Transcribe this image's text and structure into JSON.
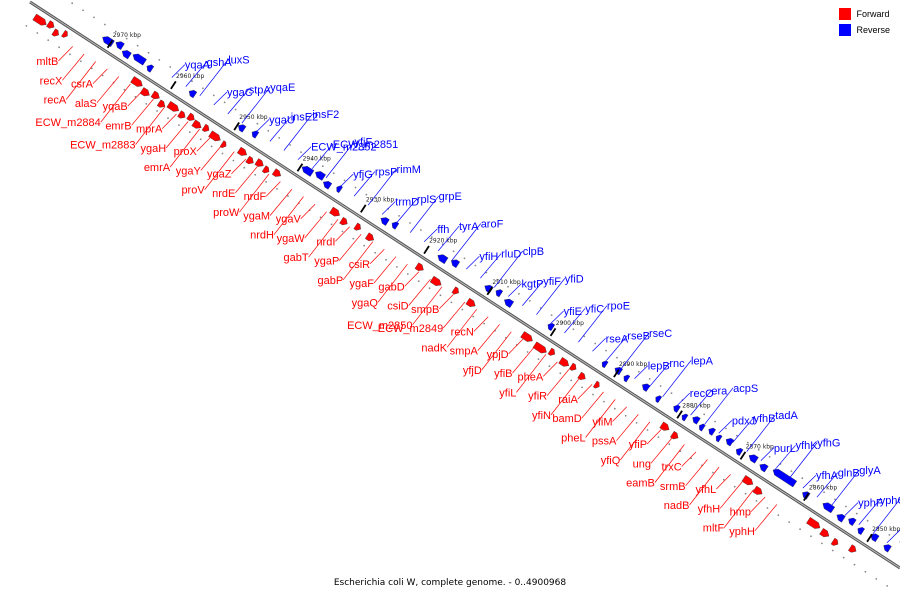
{
  "caption": "Escherichia coli W, complete genome. - 0..4900968",
  "legend": [
    {
      "label": "Forward",
      "color": "#ff0000"
    },
    {
      "label": "Reverse",
      "color": "#0000ff"
    }
  ],
  "colors": {
    "forward": "#ff0000",
    "reverse": "#0000ff",
    "backbone": "#888888"
  },
  "ticks": [
    "2970 kbp",
    "2960 kbp",
    "2950 kbp",
    "2940 kbp",
    "2930 kbp",
    "2920 kbp",
    "2910 kbp",
    "2900 kbp",
    "2890 kbp",
    "2880 kbp",
    "2870 kbp",
    "2860 kbp",
    "2850 kbp"
  ],
  "reverse_genes": [
    "yqaA",
    "gshA",
    "luxS",
    "ygaC",
    "stpA",
    "yqaE",
    "ygaU",
    "insE2",
    "insF2",
    "ECW_m2852",
    "ECW_m2851",
    "yfjF",
    "yfjG",
    "rpsP",
    "rimM",
    "trmD",
    "rplS",
    "grpE",
    "ffh",
    "tyrA",
    "aroF",
    "yfiH",
    "rluD",
    "clpB",
    "kgtP",
    "yfiF",
    "yfiD",
    "yfiE",
    "yfiC",
    "rpoE",
    "rseA",
    "rseB",
    "rseC",
    "lepB",
    "rnc",
    "lepA",
    "recO",
    "era",
    "acpS",
    "pdxJ",
    "yfhB",
    "tadA",
    "purL",
    "yfhK",
    "yfhG",
    "yfhA",
    "glnB",
    "glyA",
    "yphF",
    "yphG",
    "yphE",
    "yphD",
    "yphC"
  ],
  "forward_genes": [
    "mltB",
    "recX",
    "recA",
    "csrA",
    "alaS",
    "ECW_m2884",
    "yqaB",
    "emrB",
    "ECW_m2883",
    "mprA",
    "ygaH",
    "emrA",
    "proX",
    "ygaY",
    "proV",
    "ygaZ",
    "nrdE",
    "proW",
    "nrdF",
    "ygaM",
    "nrdH",
    "ygaV",
    "ygaW",
    "gabT",
    "nrdI",
    "ygaP",
    "gabP",
    "csiR",
    "ygaF",
    "ygaQ",
    "gabD",
    "csiD",
    "ECW_m2850",
    "smpB",
    "ECW_m2849",
    "nadK",
    "recN",
    "smpA",
    "yfjD",
    "ypjD",
    "yfiB",
    "yfiL",
    "pheA",
    "yfiR",
    "yfiN",
    "raiA",
    "bamD",
    "pheL",
    "yfiM",
    "pssA",
    "yfiQ",
    "yfiP",
    "ung",
    "eamB",
    "trxC",
    "srmB",
    "nadB",
    "yfhL",
    "yfhH",
    "mltF",
    "hmp",
    "yphH"
  ]
}
